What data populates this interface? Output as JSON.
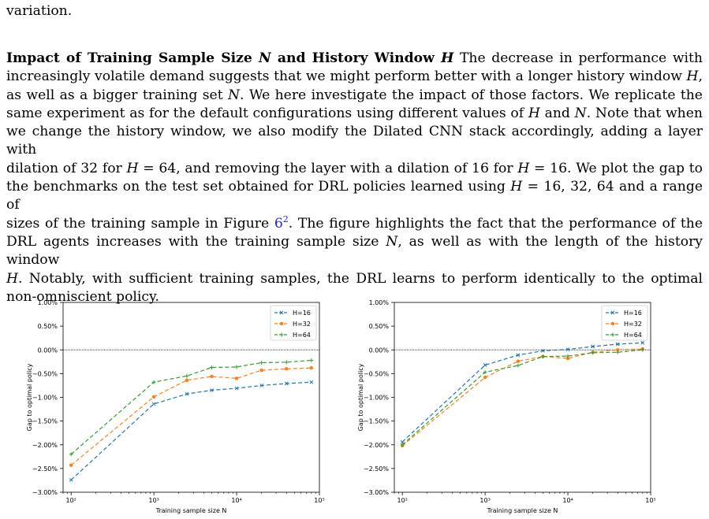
{
  "paragraph_prev": {
    "line_0": "variation."
  },
  "paragraph_main": {
    "heading_a": "Impact of Training Sample Size ",
    "heading_N": "N",
    "heading_b": " and History Window ",
    "heading_H": "H",
    "lines": [
      [
        {
          "t": " The decrease in performance with"
        }
      ],
      [
        {
          "t": "increasingly volatile demand suggests that we might perform better with a longer history window "
        },
        {
          "t": "H",
          "i": true
        },
        {
          "t": ","
        }
      ],
      [
        {
          "t": "as well as a bigger training set "
        },
        {
          "t": "N",
          "i": true
        },
        {
          "t": ". We here investigate the impact of those factors. We replicate the"
        }
      ],
      [
        {
          "t": "same experiment as for the default configurations using different values of "
        },
        {
          "t": "H",
          "i": true
        },
        {
          "t": " and "
        },
        {
          "t": "N",
          "i": true
        },
        {
          "t": ". Note that when"
        }
      ],
      [
        {
          "t": "we change the history window, we also modify the Dilated CNN stack accordingly, adding a layer with"
        }
      ],
      [
        {
          "t": "dilation of 32 for "
        },
        {
          "t": "H",
          "i": true
        },
        {
          "t": " = 64, and removing the layer with a dilation of 16 for "
        },
        {
          "t": "H",
          "i": true
        },
        {
          "t": " = 16. We plot the gap to"
        }
      ],
      [
        {
          "t": "the benchmarks on the test set obtained for DRL policies learned using "
        },
        {
          "t": "H",
          "i": true
        },
        {
          "t": " = 16, 32, 64 and a range of"
        }
      ],
      [
        {
          "t": "sizes of the training sample in Figure "
        },
        {
          "t": "6",
          "link": true
        },
        {
          "t": "2",
          "sup": true
        },
        {
          "t": ". The figure highlights the fact that the performance of the"
        }
      ],
      [
        {
          "t": "DRL agents increases with the training sample size "
        },
        {
          "t": "N",
          "i": true
        },
        {
          "t": ", as well as with the length of the history window"
        }
      ],
      [
        {
          "t": "H",
          "i": true
        },
        {
          "t": ". Notably, with sufficient training samples, the DRL learns to perform identically to the optimal"
        }
      ],
      [
        {
          "t": "non-omniscient policy."
        }
      ]
    ]
  },
  "chart_data": [
    {
      "type": "line",
      "title": "",
      "xlabel": "Training sample size N",
      "ylabel": "Gap to optimal policy",
      "xscale": "log",
      "xlim": [
        80,
        100000
      ],
      "ylim": [
        -3.0,
        1.0
      ],
      "x_tick_labels": [
        "10²",
        "10³",
        "10⁴",
        "10⁵"
      ],
      "y_tick_labels": [
        "1.00%",
        "0.50%",
        "0.00%",
        "−0.50%",
        "−1.00%",
        "−1.50%",
        "−2.00%",
        "−2.50%",
        "−3.00%"
      ],
      "reference_line": 0.0,
      "legend_position": "upper right",
      "grid": false,
      "x": [
        100,
        1000,
        2500,
        5000,
        10000,
        20000,
        40000,
        80000
      ],
      "series": [
        {
          "name": "H=16",
          "color": "#1f77b4",
          "marker": "x",
          "values": [
            -2.74,
            -1.14,
            -0.93,
            -0.85,
            -0.81,
            -0.75,
            -0.71,
            -0.68
          ]
        },
        {
          "name": "H=32",
          "color": "#ff7f0e",
          "marker": "circle",
          "values": [
            -2.43,
            -0.99,
            -0.64,
            -0.56,
            -0.6,
            -0.43,
            -0.4,
            -0.38
          ]
        },
        {
          "name": "H=64",
          "color": "#2ca02c",
          "marker": "plus",
          "values": [
            -2.2,
            -0.68,
            -0.55,
            -0.37,
            -0.36,
            -0.27,
            -0.26,
            -0.22
          ]
        }
      ]
    },
    {
      "type": "line",
      "title": "",
      "xlabel": "Training sample size N",
      "ylabel": "Gap to optimal policy",
      "xscale": "log",
      "xlim": [
        80,
        100000
      ],
      "ylim": [
        -3.0,
        1.0
      ],
      "x_tick_labels": [
        "10²",
        "10³",
        "10⁴",
        "10⁵"
      ],
      "y_tick_labels": [
        "1.00%",
        "0.50%",
        "0.00%",
        "−0.50%",
        "−1.00%",
        "−1.50%",
        "−2.00%",
        "−2.50%",
        "−3.00%"
      ],
      "reference_line": 0.0,
      "legend_position": "upper right",
      "grid": false,
      "x": [
        100,
        1000,
        2500,
        5000,
        10000,
        20000,
        40000,
        80000
      ],
      "series": [
        {
          "name": "H=16",
          "color": "#1f77b4",
          "marker": "x",
          "values": [
            -1.94,
            -0.32,
            -0.11,
            -0.02,
            0.01,
            0.07,
            0.12,
            0.15
          ]
        },
        {
          "name": "H=32",
          "color": "#ff7f0e",
          "marker": "circle",
          "values": [
            -2.02,
            -0.58,
            -0.24,
            -0.14,
            -0.18,
            -0.05,
            0.0,
            0.02
          ]
        },
        {
          "name": "H=64",
          "color": "#2ca02c",
          "marker": "plus",
          "values": [
            -2.0,
            -0.47,
            -0.33,
            -0.14,
            -0.13,
            -0.06,
            -0.05,
            0.0
          ]
        }
      ]
    }
  ]
}
